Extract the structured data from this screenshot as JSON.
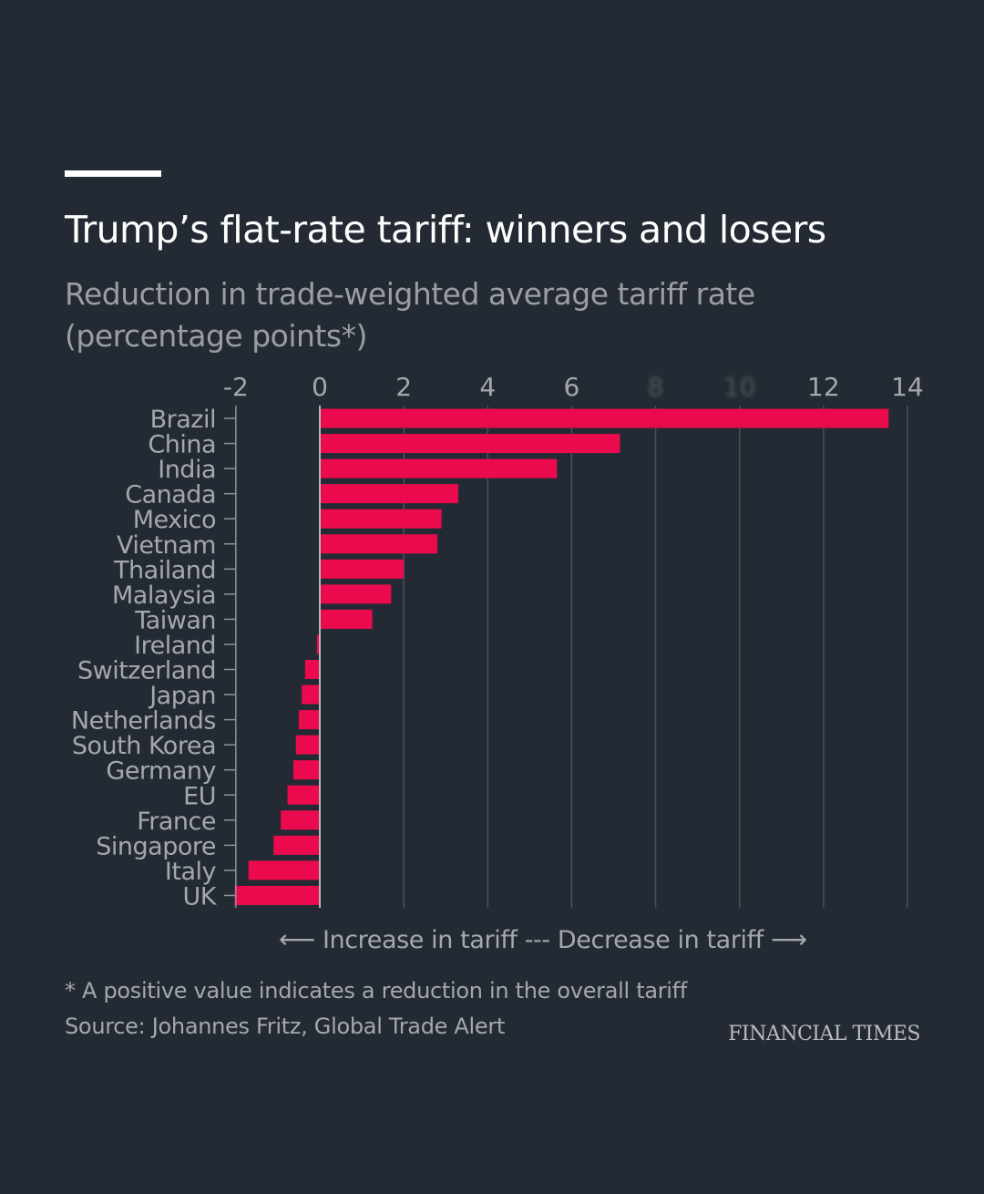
{
  "header": {
    "title": "Trump’s flat-rate tariff: winners and losers",
    "subtitle": "Reduction in trade-weighted average tariff rate (percentage points*)"
  },
  "colors": {
    "background": "#242a33",
    "bar": "#ec0a4e",
    "gridline": "#4a5059",
    "axis_text": "#a4a8ae",
    "title": "#ffffff"
  },
  "chart_data": {
    "type": "bar",
    "orientation": "horizontal",
    "title": "Trump’s flat-rate tariff: winners and losers",
    "subtitle": "Reduction in trade-weighted average tariff rate (percentage points*)",
    "xlabel": "",
    "ylabel": "",
    "xlim": [
      -2,
      14
    ],
    "xticks": [
      -2,
      0,
      2,
      4,
      6,
      8,
      10,
      12,
      14
    ],
    "xtick_labels": [
      "-2",
      "0",
      "2",
      "4",
      "6",
      "8",
      "10",
      "12",
      "14"
    ],
    "obscured_tick_labels": [
      "8",
      "10"
    ],
    "grid": "vertical",
    "legend": "none",
    "categories": [
      "Brazil",
      "China",
      "India",
      "Canada",
      "Mexico",
      "Vietnam",
      "Thailand",
      "Malaysia",
      "Taiwan",
      "Ireland",
      "Switzerland",
      "Japan",
      "Netherlands",
      "South Korea",
      "Germany",
      "EU",
      "France",
      "Singapore",
      "Italy",
      "UK"
    ],
    "values": [
      13.55,
      7.15,
      5.65,
      3.3,
      2.9,
      2.8,
      2.0,
      1.7,
      1.25,
      -0.07,
      -0.35,
      -0.43,
      -0.5,
      -0.57,
      -0.63,
      -0.77,
      -0.93,
      -1.1,
      -1.7,
      -2.03
    ]
  },
  "annotations": {
    "direction_left_arrow": "⟵",
    "direction_text": "Increase in tariff --- Decrease in tariff",
    "direction_right_arrow": "⟶"
  },
  "footer": {
    "footnote": "* A positive value indicates a reduction in the overall tariff",
    "source": "Source: Johannes Fritz, Global Trade Alert",
    "brand": "FINANCIAL TIMES"
  }
}
